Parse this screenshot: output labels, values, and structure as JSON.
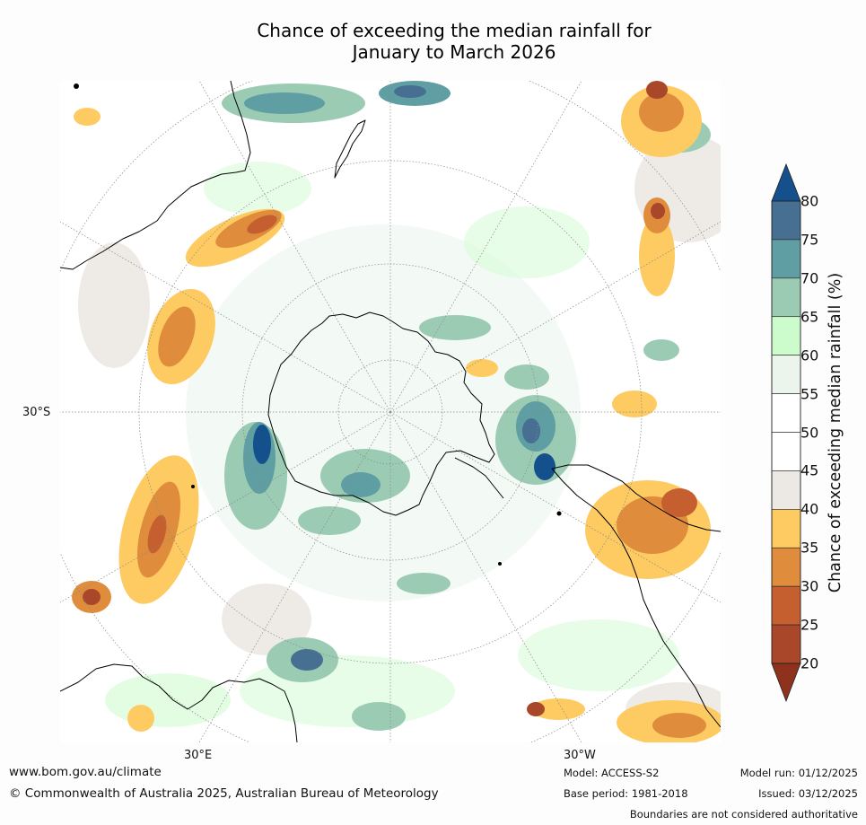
{
  "title": {
    "line1": "Chance of exceeding the median rainfall for",
    "line2": "January to March 2026"
  },
  "map": {
    "projection": "south polar stereographic",
    "lat_label": "30°S",
    "lon_labels": [
      "30°E",
      "30°W"
    ]
  },
  "colorbar": {
    "label": "Chance of exceeding median rainfall (%)",
    "ticks": [
      "80",
      "75",
      "70",
      "65",
      "60",
      "55",
      "50",
      "45",
      "40",
      "35",
      "30",
      "25",
      "20"
    ],
    "bins": [
      {
        "range": "75-80",
        "color": "#466f91"
      },
      {
        "range": "70-75",
        "color": "#5f9ea2"
      },
      {
        "range": "65-70",
        "color": "#9bcbb3"
      },
      {
        "range": "60-65",
        "color": "#ccfccc"
      },
      {
        "range": "55-60",
        "color": "#ebf5ec"
      },
      {
        "range": "50-55",
        "color": "#ffffff"
      },
      {
        "range": "45-50",
        "color": "#ffffff"
      },
      {
        "range": "40-45",
        "color": "#ece9e5"
      },
      {
        "range": "35-40",
        "color": "#fecb62"
      },
      {
        "range": "30-35",
        "color": "#df8d3d"
      },
      {
        "range": "25-30",
        "color": "#c55f30"
      },
      {
        "range": "20-25",
        "color": "#a9472b"
      }
    ],
    "over_color": "#14508b",
    "under_color": "#8e321d"
  },
  "footer": {
    "url": "www.bom.gov.au/climate",
    "copyright": "© Commonwealth of Australia 2025, Australian Bureau of Meteorology",
    "model": "Model: ACCESS-S2",
    "base_period": "Base period: 1981-2018",
    "model_run": "Model run: 01/12/2025",
    "issued": "Issued: 03/12/2025",
    "disclaimer": "Boundaries are not considered authoritative"
  }
}
